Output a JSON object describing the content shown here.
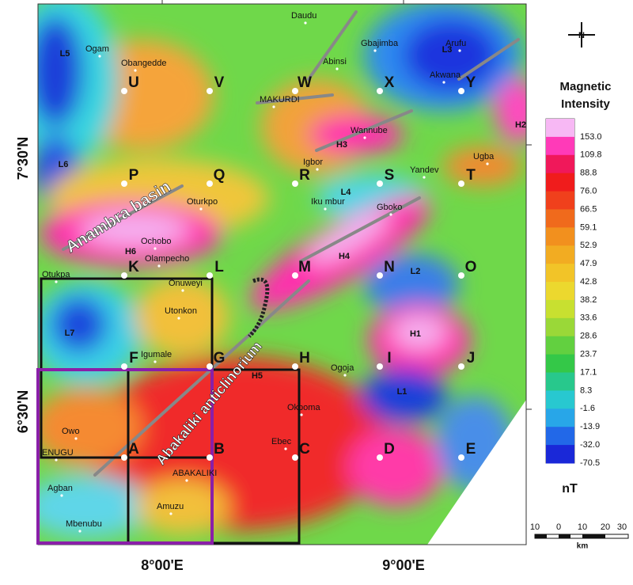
{
  "map": {
    "latitude_labels": [
      "7°30'N",
      "6°30'N"
    ],
    "longitude_labels": [
      "8°00'E",
      "9°00'E"
    ],
    "grid_points": [
      "U",
      "V",
      "W",
      "X",
      "Y",
      "P",
      "Q",
      "R",
      "S",
      "T",
      "K",
      "L",
      "M",
      "N",
      "O",
      "F",
      "G",
      "H",
      "I",
      "J",
      "A",
      "B",
      "C",
      "D",
      "E"
    ],
    "towns": [
      "Daudu",
      "Ogam",
      "Obangedde",
      "Abinsi",
      "Gbajimba",
      "Arufu",
      "Akwana",
      "MAKURDI",
      "Wannube",
      "Igbor",
      "Yandev",
      "Ugba",
      "Oturkpo",
      "Iku mbur",
      "Gboko",
      "Ochobo",
      "Olampecho",
      "Otukpa",
      "Onuweyi",
      "Utonkon",
      "Igumale",
      "Ogoja",
      "Okpoma",
      "Ebec",
      "Owo",
      "ENUGU",
      "ABAKALIKI",
      "Agban",
      "Amuzu",
      "Mbenubu"
    ],
    "anomalies": [
      "L5",
      "L6",
      "L7",
      "L4",
      "L3",
      "L2",
      "L1",
      "H1",
      "H2",
      "H3",
      "H4",
      "H5",
      "H6"
    ],
    "structures": [
      "Anambra basin",
      "Abakaliki anticlinorium"
    ]
  },
  "legend": {
    "title": "Magnetic Intensity",
    "values": [
      "153.0",
      "109.8",
      "88.8",
      "76.0",
      "66.5",
      "59.1",
      "52.9",
      "47.9",
      "42.8",
      "38.2",
      "33.6",
      "28.6",
      "23.7",
      "17.1",
      "8.3",
      "-1.6",
      "-13.9",
      "-32.0",
      "-70.5"
    ],
    "unit": "nT"
  },
  "compass": "N",
  "scale_bar": {
    "ticks": [
      "10",
      "0",
      "10",
      "20",
      "30"
    ],
    "unit": "km"
  }
}
